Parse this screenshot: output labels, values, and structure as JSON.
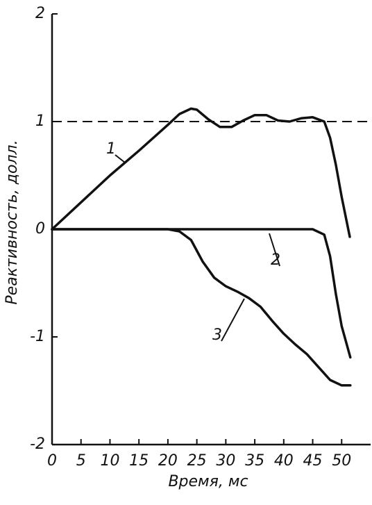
{
  "chart_data": {
    "type": "line",
    "x_label": "Время, мс",
    "y_label": "Реактивность, долл.",
    "xlim": [
      0,
      55
    ],
    "xticks": [
      0,
      5,
      10,
      15,
      20,
      25,
      30,
      35,
      40,
      45,
      50
    ],
    "ylim": [
      -2,
      2
    ],
    "yticks": [
      -2,
      -1,
      0,
      1,
      2
    ],
    "reference_line": {
      "value": 1,
      "style": "dashed"
    },
    "series": [
      {
        "name": "1",
        "color": "#111111",
        "x": [
          0,
          5,
          10,
          15,
          20,
          22,
          24,
          25,
          27,
          29,
          31,
          33,
          35,
          37,
          39,
          41,
          43,
          45,
          47,
          48,
          49,
          50,
          51.4
        ],
        "values": [
          0,
          0.25,
          0.5,
          0.73,
          0.97,
          1.07,
          1.12,
          1.11,
          1.02,
          0.95,
          0.95,
          1.01,
          1.06,
          1.06,
          1.01,
          1.0,
          1.03,
          1.04,
          1.0,
          0.85,
          0.6,
          0.3,
          -0.07
        ]
      },
      {
        "name": "2",
        "color": "#111111",
        "x": [
          0,
          10,
          20,
          30,
          40,
          45,
          47,
          48,
          49,
          50,
          51.5
        ],
        "values": [
          0,
          0,
          0,
          0,
          0,
          0,
          -0.05,
          -0.25,
          -0.6,
          -0.9,
          -1.19
        ]
      },
      {
        "name": "3",
        "color": "#111111",
        "x": [
          0,
          10,
          20,
          22,
          24,
          26,
          28,
          30,
          32,
          34,
          36,
          38,
          40,
          42,
          44,
          46,
          48,
          50,
          51.5
        ],
        "values": [
          0,
          0,
          0,
          -0.02,
          -0.1,
          -0.3,
          -0.45,
          -0.53,
          -0.58,
          -0.64,
          -0.72,
          -0.85,
          -0.97,
          -1.07,
          -1.16,
          -1.28,
          -1.4,
          -1.45,
          -1.45
        ]
      }
    ]
  }
}
